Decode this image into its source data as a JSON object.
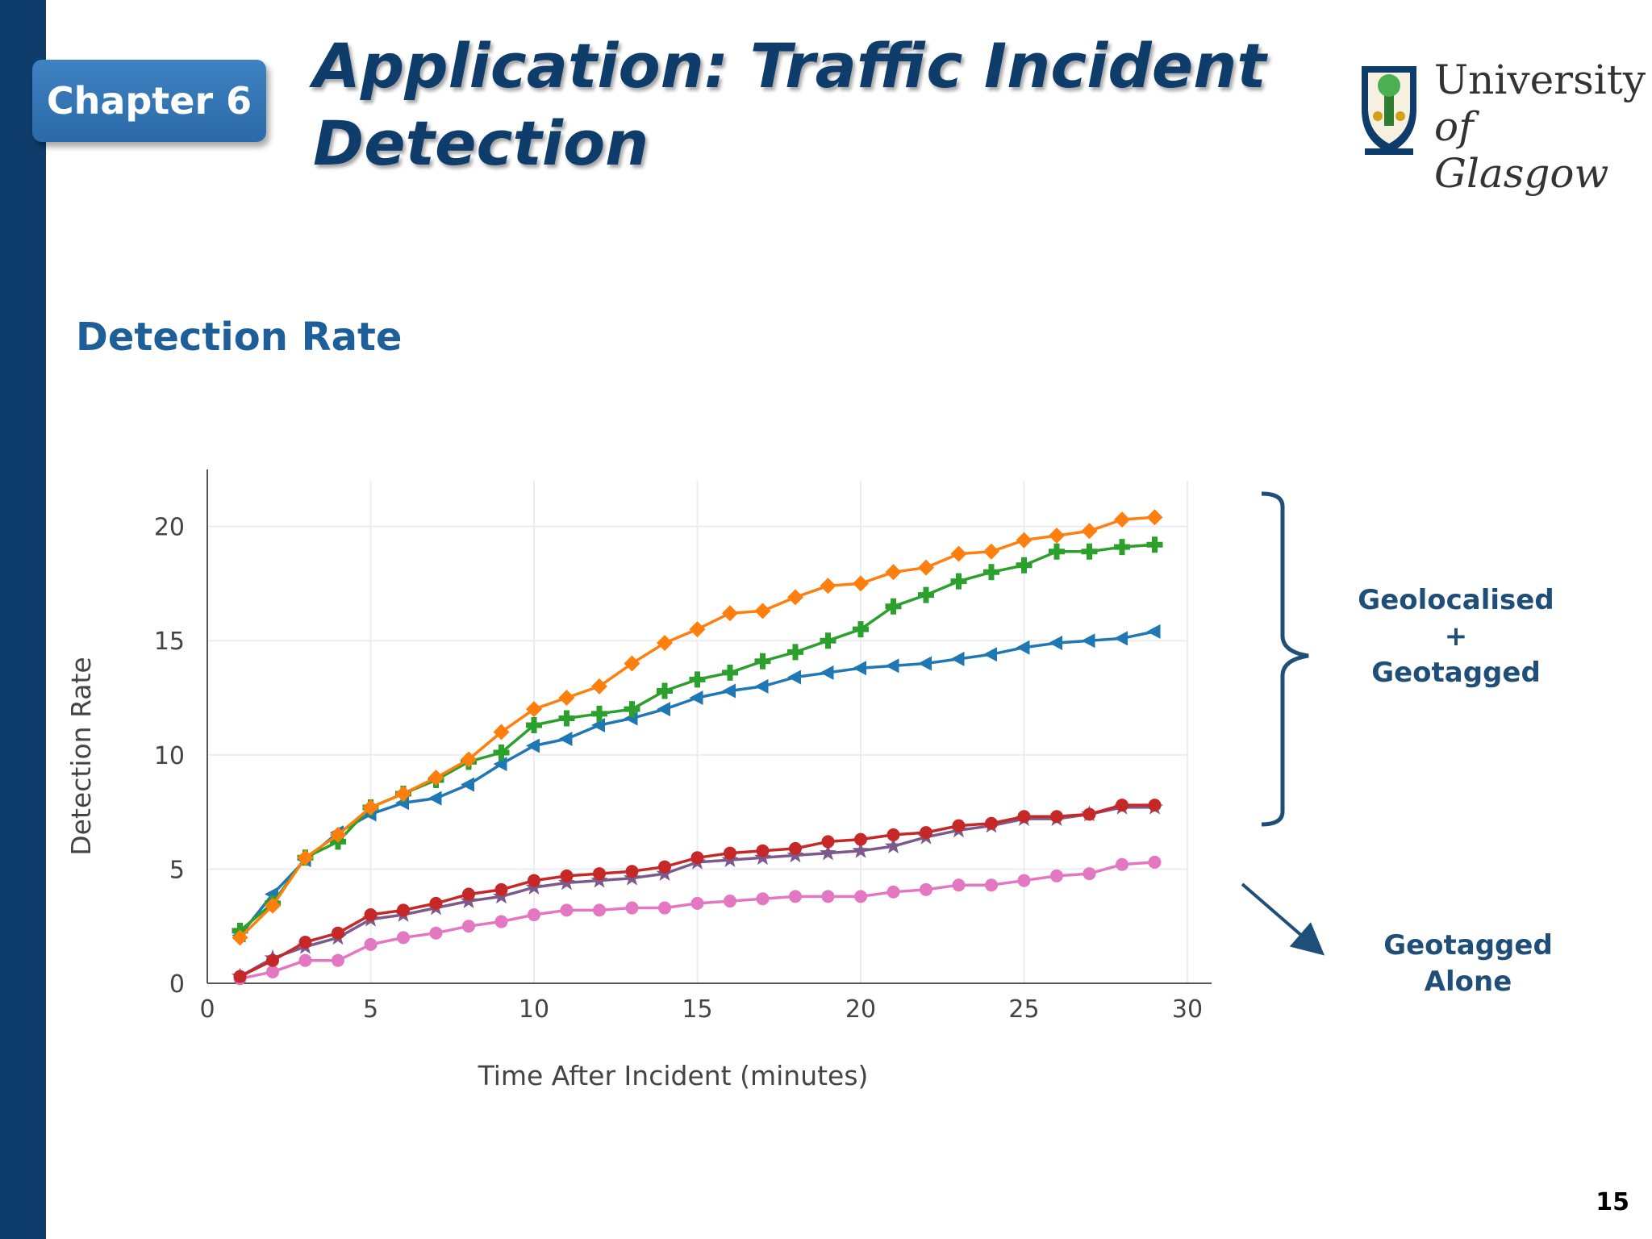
{
  "slide": {
    "chapter_label": "Chapter 6",
    "title": "Application: Traffic Incident Detection",
    "section_heading": "Detection Rate",
    "page_number": "15"
  },
  "logo": {
    "line1": "University",
    "line2": "of Glasgow"
  },
  "annotations": {
    "bracket_label_1": "Geolocalised",
    "bracket_label_2": "+",
    "bracket_label_3": "Geotagged",
    "arrow_label": "Geotagged Alone"
  },
  "colors": {
    "navy": "#0e3d6b",
    "badge_blue": "#2f72b4",
    "annotation_blue": "#1f4e79"
  },
  "chart_data": {
    "type": "line",
    "title": "",
    "xlabel": "Time After Incident (minutes)",
    "ylabel": "Detection Rate",
    "xlim": [
      0,
      30
    ],
    "ylim": [
      0,
      22
    ],
    "x_ticks": [
      0,
      5,
      10,
      15,
      20,
      25,
      30
    ],
    "y_ticks": [
      0,
      5,
      10,
      15,
      20
    ],
    "grid": true,
    "x": [
      1,
      2,
      3,
      4,
      5,
      6,
      7,
      8,
      9,
      10,
      11,
      12,
      13,
      14,
      15,
      16,
      17,
      18,
      19,
      20,
      21,
      22,
      23,
      24,
      25,
      26,
      27,
      28,
      29
    ],
    "series": [
      {
        "color": "#ff7f0e",
        "marker": "diamond",
        "values": [
          2.0,
          3.4,
          5.5,
          6.5,
          7.7,
          8.3,
          9.0,
          9.8,
          11.0,
          12.0,
          12.5,
          13.0,
          14.0,
          14.9,
          15.5,
          16.2,
          16.3,
          16.9,
          17.4,
          17.5,
          18.0,
          18.2,
          18.8,
          18.9,
          19.4,
          19.6,
          19.8,
          20.3,
          20.4
        ]
      },
      {
        "color": "#2ca02c",
        "marker": "cross",
        "values": [
          2.3,
          3.5,
          5.5,
          6.2,
          7.7,
          8.3,
          8.9,
          9.7,
          10.1,
          11.3,
          11.6,
          11.8,
          12.0,
          12.8,
          13.3,
          13.6,
          14.1,
          14.5,
          15.0,
          15.5,
          16.5,
          17.0,
          17.6,
          18.0,
          18.3,
          18.9,
          18.9,
          19.1,
          19.2
        ]
      },
      {
        "color": "#1f77b4",
        "marker": "triangle-left",
        "values": [
          2.1,
          3.9,
          5.4,
          6.6,
          7.4,
          7.9,
          8.1,
          8.7,
          9.6,
          10.4,
          10.7,
          11.3,
          11.6,
          12.0,
          12.5,
          12.8,
          13.0,
          13.4,
          13.6,
          13.8,
          13.9,
          14.0,
          14.2,
          14.4,
          14.7,
          14.9,
          15.0,
          15.1,
          15.4
        ]
      },
      {
        "color": "#c62828",
        "marker": "circle",
        "values": [
          0.3,
          1.0,
          1.8,
          2.2,
          3.0,
          3.2,
          3.5,
          3.9,
          4.1,
          4.5,
          4.7,
          4.8,
          4.9,
          5.1,
          5.5,
          5.7,
          5.8,
          5.9,
          6.2,
          6.3,
          6.5,
          6.6,
          6.9,
          7.0,
          7.3,
          7.3,
          7.4,
          7.8,
          7.8
        ]
      },
      {
        "color": "#7d5a8c",
        "marker": "star",
        "values": [
          0.3,
          1.1,
          1.6,
          2.0,
          2.8,
          3.0,
          3.3,
          3.6,
          3.8,
          4.2,
          4.4,
          4.5,
          4.6,
          4.8,
          5.3,
          5.4,
          5.5,
          5.6,
          5.7,
          5.8,
          6.0,
          6.4,
          6.7,
          6.9,
          7.2,
          7.2,
          7.4,
          7.7,
          7.7
        ]
      },
      {
        "color": "#e377c2",
        "marker": "circle",
        "values": [
          0.2,
          0.5,
          1.0,
          1.0,
          1.7,
          2.0,
          2.2,
          2.5,
          2.7,
          3.0,
          3.2,
          3.2,
          3.3,
          3.3,
          3.5,
          3.6,
          3.7,
          3.8,
          3.8,
          3.8,
          4.0,
          4.1,
          4.3,
          4.3,
          4.5,
          4.7,
          4.8,
          5.2,
          5.3
        ]
      }
    ]
  }
}
